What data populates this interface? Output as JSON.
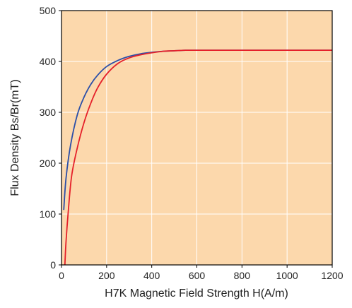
{
  "chart_data": {
    "type": "line",
    "title": "",
    "xlabel": "H7K Magnetic Field Strength H(A/m)",
    "ylabel": "Flux Density Bs/Br(mT)",
    "xlim": [
      0,
      1200
    ],
    "ylim": [
      0,
      500
    ],
    "x_ticks": [
      "0",
      "200",
      "400",
      "600",
      "800",
      "1000",
      "1200"
    ],
    "y_ticks": [
      "0",
      "100",
      "200",
      "300",
      "400",
      "500"
    ],
    "grid": true,
    "legend": "none",
    "colors": {
      "plot_background": "#fcd8ac",
      "grid": "#ffffff",
      "axis": "#000000"
    },
    "series": [
      {
        "color": "#2b4fa8",
        "x": [
          10,
          20,
          40,
          70,
          100,
          130,
          160,
          200,
          250,
          300,
          350,
          400,
          450,
          500,
          550,
          600,
          700,
          800,
          1000,
          1200
        ],
        "y": [
          108,
          170,
          235,
          295,
          330,
          355,
          373,
          390,
          402,
          410,
          415,
          418,
          420,
          421,
          422,
          422,
          422,
          422,
          422,
          422
        ]
      },
      {
        "color": "#e5202a",
        "x": [
          15,
          20,
          30,
          45,
          70,
          100,
          130,
          160,
          200,
          250,
          300,
          350,
          400,
          450,
          500,
          550,
          600,
          700,
          800,
          1000,
          1200
        ],
        "y": [
          0,
          45,
          105,
          175,
          230,
          280,
          318,
          348,
          375,
          396,
          407,
          413,
          417,
          420,
          421,
          422,
          422,
          422,
          422,
          422,
          422
        ]
      }
    ]
  }
}
